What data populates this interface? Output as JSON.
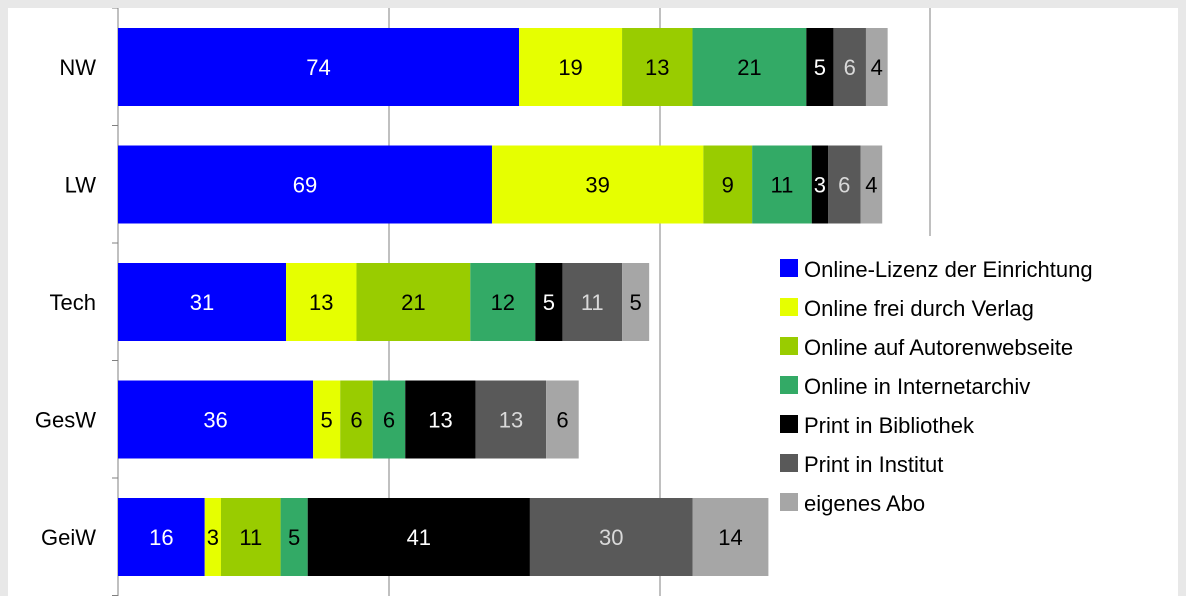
{
  "chart_data": {
    "type": "bar",
    "orientation": "horizontal",
    "stacked": true,
    "categories": [
      "NW",
      "LW",
      "Tech",
      "GesW",
      "GeiW"
    ],
    "series": [
      {
        "name": "Online-Lizenz der Einrichtung",
        "values": [
          74,
          69,
          31,
          36,
          16
        ],
        "color": "#0000ff",
        "label_color": "#ffffff"
      },
      {
        "name": "Online frei durch Verlag",
        "values": [
          19,
          39,
          13,
          5,
          3
        ],
        "color": "#e6ff00",
        "label_color": "#000000"
      },
      {
        "name": "Online auf Autorenwebseite",
        "values": [
          13,
          9,
          21,
          6,
          11
        ],
        "color": "#99cc00",
        "label_color": "#000000"
      },
      {
        "name": "Online in Internetarchiv",
        "values": [
          21,
          11,
          12,
          6,
          5
        ],
        "color": "#33aa66",
        "label_color": "#000000"
      },
      {
        "name": "Print in Bibliothek",
        "values": [
          5,
          3,
          5,
          13,
          41
        ],
        "color": "#000000",
        "label_color": "#ffffff"
      },
      {
        "name": "Print in Institut",
        "values": [
          6,
          6,
          11,
          13,
          30
        ],
        "color": "#595959",
        "label_color": "#d9d9d9"
      },
      {
        "name": "eigenes Abo",
        "values": [
          4,
          4,
          5,
          6,
          14
        ],
        "color": "#a6a6a6",
        "label_color": "#000000"
      }
    ],
    "xlim": [
      0,
      150
    ],
    "grid": true,
    "legend": "right"
  }
}
